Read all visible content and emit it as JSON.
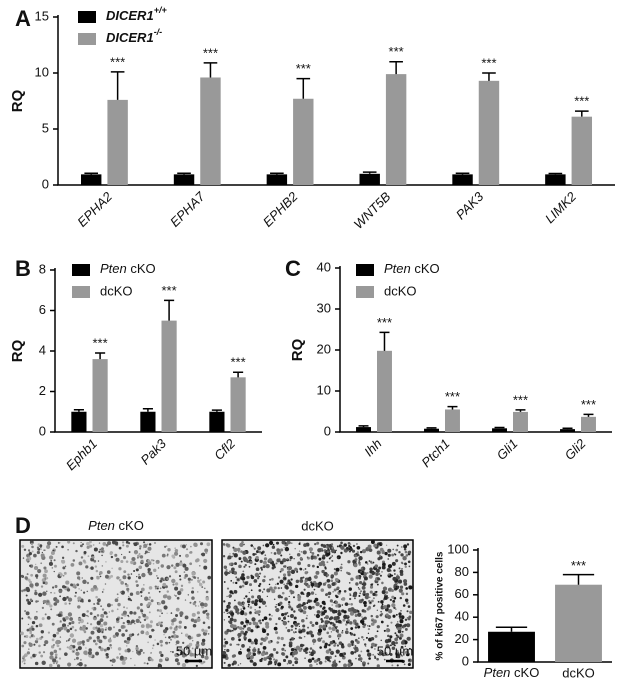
{
  "chart_data": [
    {
      "type": "bar",
      "panel": "A",
      "ylabel": "RQ",
      "ylim": [
        0,
        15
      ],
      "yticks": [
        0,
        5,
        10,
        15
      ],
      "categories": [
        "EPHA2",
        "EPHA7",
        "EPHB2",
        "WNT5B",
        "PAK3",
        "LIMK2"
      ],
      "series": [
        {
          "name": "DICER1+/+",
          "color": "#000000",
          "values": [
            0.95,
            0.95,
            0.95,
            1.0,
            0.95,
            0.95
          ],
          "errors": [
            0.1,
            0.1,
            0.1,
            0.15,
            0.1,
            0.08
          ]
        },
        {
          "name": "DICER1-/-",
          "color": "#999999",
          "values": [
            7.6,
            9.6,
            7.7,
            9.9,
            9.3,
            6.1
          ],
          "errors": [
            2.5,
            1.3,
            1.8,
            1.1,
            0.7,
            0.5
          ],
          "significance": [
            "***",
            "***",
            "***",
            "***",
            "***",
            "***"
          ]
        }
      ]
    },
    {
      "type": "bar",
      "panel": "B",
      "ylabel": "RQ",
      "ylim": [
        0,
        8
      ],
      "yticks": [
        0,
        2,
        4,
        6,
        8
      ],
      "categories": [
        "Ephb1",
        "Pak3",
        "Cfl2"
      ],
      "series": [
        {
          "name": "Pten cKO",
          "color": "#000000",
          "values": [
            1.0,
            1.0,
            1.0
          ],
          "errors": [
            0.1,
            0.15,
            0.08
          ]
        },
        {
          "name": "dcKO",
          "color": "#999999",
          "values": [
            3.6,
            5.5,
            2.7
          ],
          "errors": [
            0.3,
            1.0,
            0.25
          ],
          "significance": [
            "***",
            "***",
            "***"
          ]
        }
      ]
    },
    {
      "type": "bar",
      "panel": "C",
      "ylabel": "RQ",
      "ylim": [
        0,
        40
      ],
      "yticks": [
        0,
        10,
        20,
        30,
        40
      ],
      "categories": [
        "Ihh",
        "Ptch1",
        "Gli1",
        "Gli2"
      ],
      "series": [
        {
          "name": "Pten cKO",
          "color": "#000000",
          "values": [
            1.2,
            0.8,
            0.9,
            0.7
          ],
          "errors": [
            0.3,
            0.2,
            0.2,
            0.2
          ]
        },
        {
          "name": "dcKO",
          "color": "#999999",
          "values": [
            19.8,
            5.5,
            4.9,
            3.7
          ],
          "errors": [
            4.5,
            0.7,
            0.5,
            0.6
          ],
          "significance": [
            "***",
            "***",
            "***",
            "***"
          ]
        }
      ]
    },
    {
      "type": "single-bar",
      "panel": "D",
      "ylabel": "% of ki67 positive cells",
      "ylim": [
        0,
        100
      ],
      "yticks": [
        0,
        20,
        40,
        60,
        80,
        100
      ],
      "images": [
        {
          "title": "Pten cKO",
          "scale_bar": "50 µm"
        },
        {
          "title": "dcKO",
          "scale_bar": "50 µm"
        }
      ],
      "categories": [
        "Pten cKO",
        "dcKO"
      ],
      "values": [
        27,
        69
      ],
      "errors": [
        4,
        9
      ],
      "colors": [
        "#000000",
        "#999999"
      ],
      "significance": [
        null,
        "***"
      ]
    }
  ]
}
